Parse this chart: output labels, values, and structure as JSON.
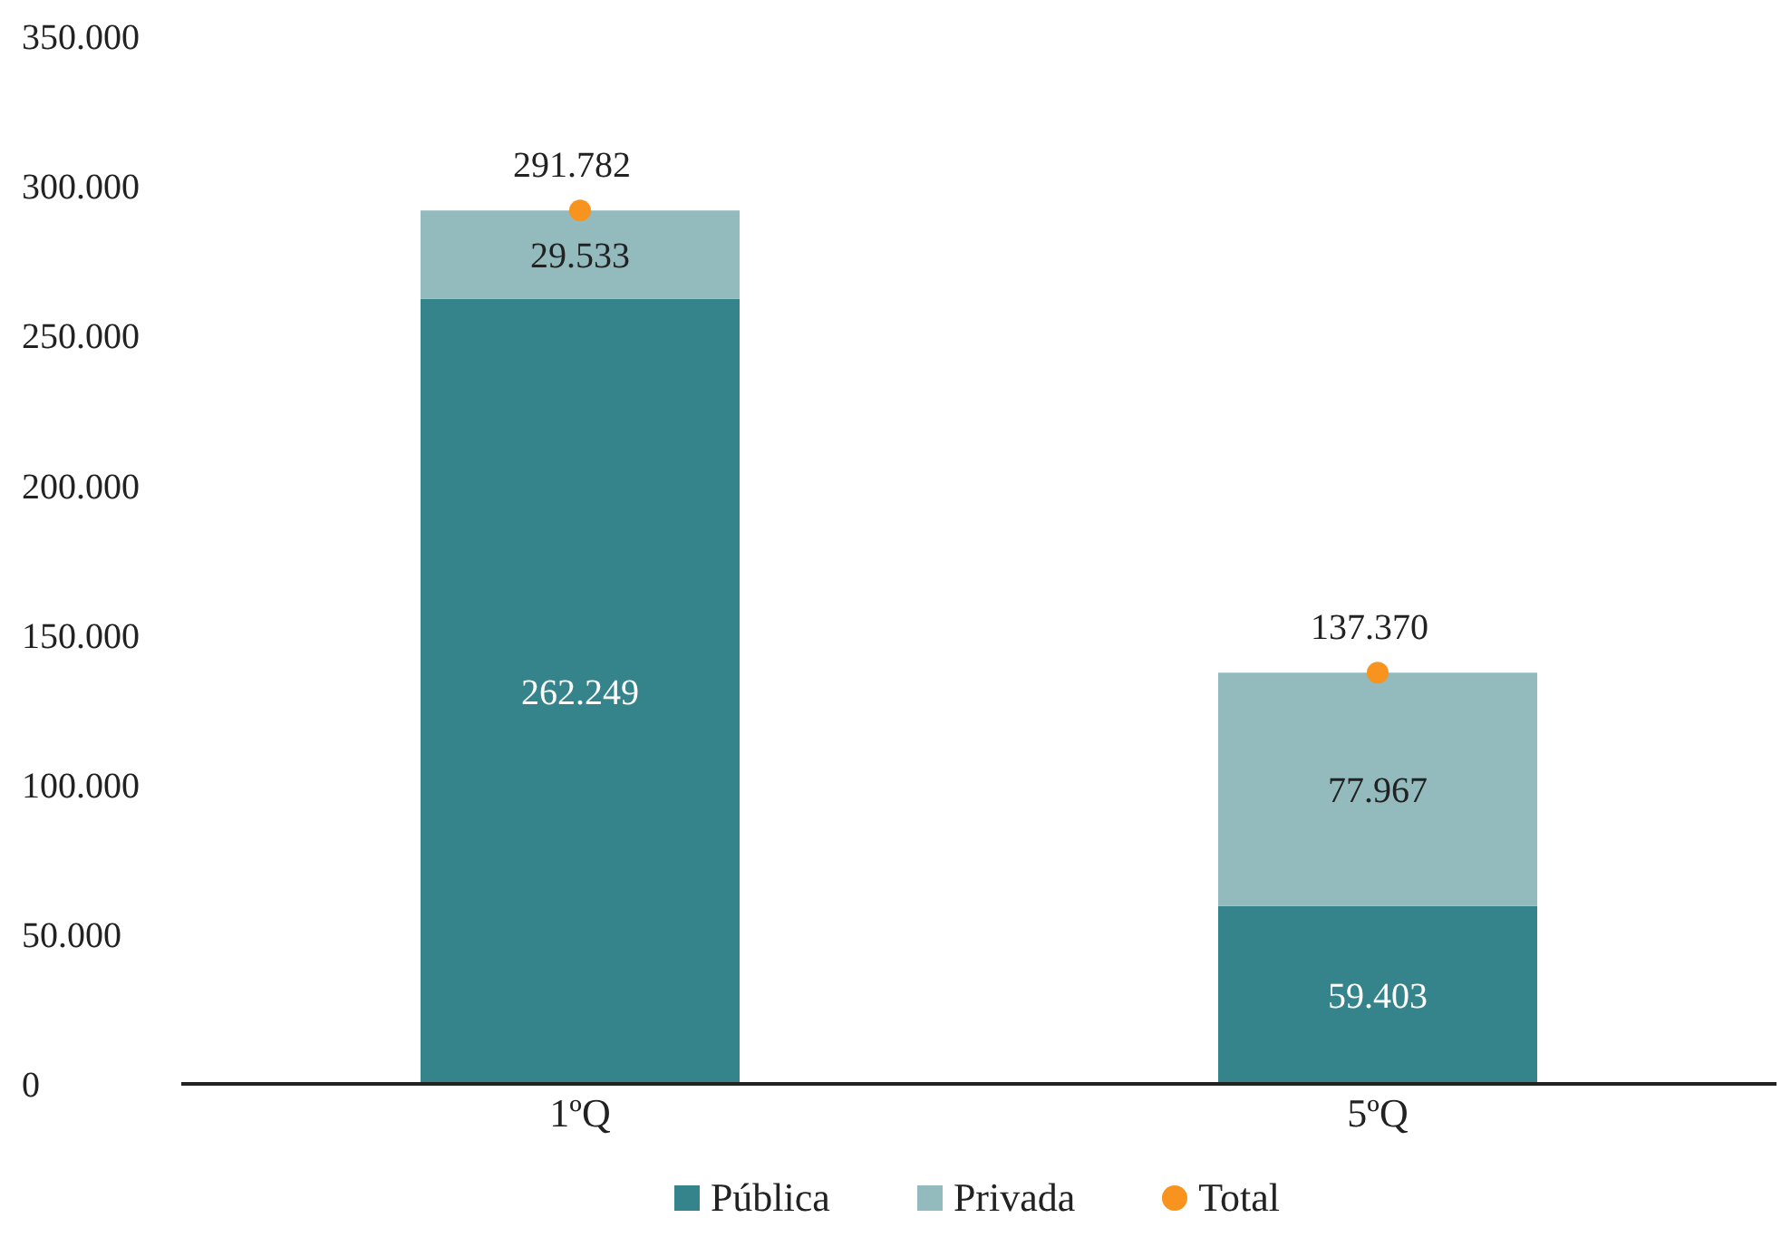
{
  "chart_data": {
    "type": "bar",
    "stacked": true,
    "categories": [
      "1ºQ",
      "5ºQ"
    ],
    "series": [
      {
        "name": "Pública",
        "color": "#35848b",
        "values": [
          262249,
          59403
        ],
        "value_labels": [
          "262.249",
          "59.403"
        ]
      },
      {
        "name": "Privada",
        "color": "#93bbbe",
        "values": [
          29533,
          77967
        ],
        "value_labels": [
          "29.533",
          "77.967"
        ]
      },
      {
        "name": "Total",
        "type": "scatter",
        "color": "#f7931e",
        "x": [
          "1ºQ",
          "5ºQ"
        ],
        "values": [
          291782,
          137370
        ],
        "value_labels": [
          "291.782",
          "137.370"
        ],
        "marker": "circle"
      }
    ],
    "ylim": [
      0,
      350000
    ],
    "yticks": [
      {
        "value": 0,
        "label": "0"
      },
      {
        "value": 50000,
        "label": "50.000"
      },
      {
        "value": 100000,
        "label": "100.000"
      },
      {
        "value": 150000,
        "label": "150.000"
      },
      {
        "value": 200000,
        "label": "200.000"
      },
      {
        "value": 250000,
        "label": "250.000"
      },
      {
        "value": 300000,
        "label": "300.000"
      },
      {
        "value": 350000,
        "label": "350.000"
      }
    ],
    "grid": false,
    "legend": "bottom"
  }
}
